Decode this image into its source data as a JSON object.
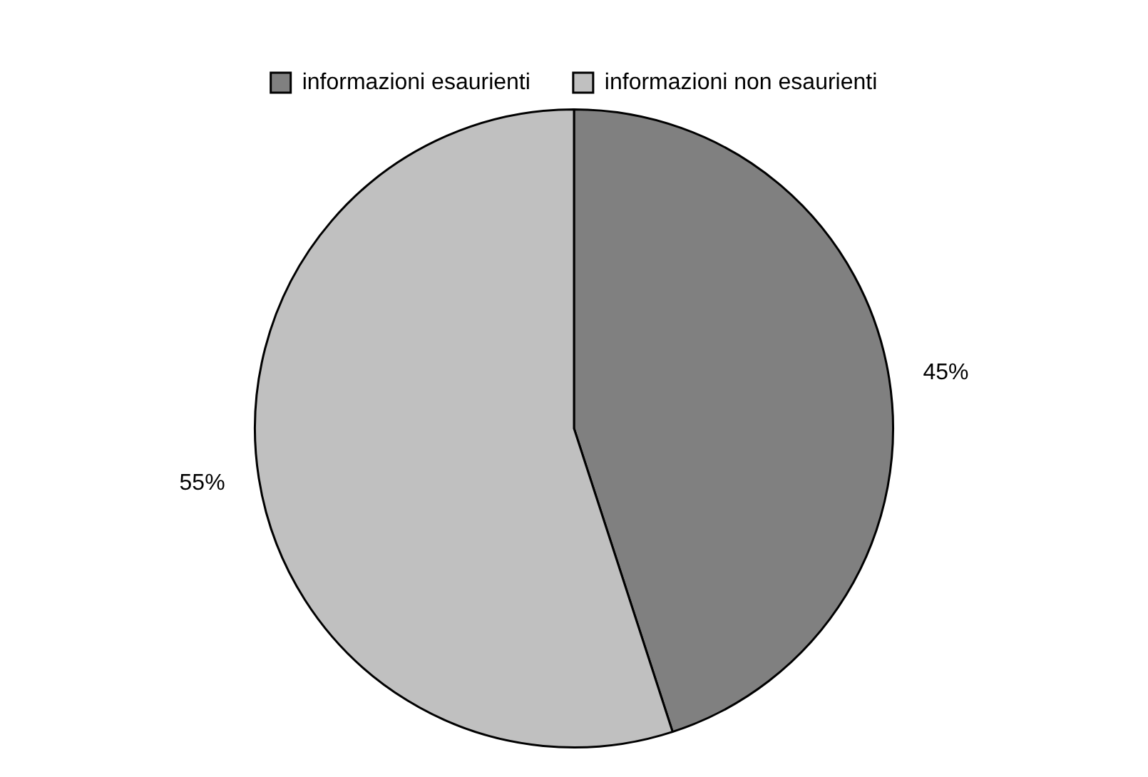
{
  "chart_data": {
    "type": "pie",
    "categories": [
      "informazioni esaurienti",
      "informazioni non esaurienti"
    ],
    "values": [
      45,
      55
    ],
    "colors": [
      "#808080",
      "#c0c0c0"
    ],
    "value_labels": [
      "45%",
      "55%"
    ],
    "legend": "top"
  }
}
